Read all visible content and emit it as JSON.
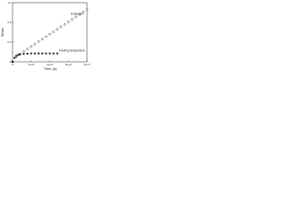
{
  "chart_data": {
    "type": "scatter",
    "xlabel": "Time (s)",
    "ylabel": "Strain",
    "xlim": [
      0,
      400000
    ],
    "xticks": [
      0,
      {
        "value": 100000,
        "label": "1e+5"
      },
      {
        "value": 200000,
        "label": "2e+5"
      },
      {
        "value": 300000,
        "label": "3e+5"
      },
      {
        "value": 400000,
        "label": "4e+5"
      }
    ],
    "ylim": [
      0,
      1.2
    ],
    "yticks": [
      0,
      0.4,
      0.8,
      1.2
    ],
    "series": [
      {
        "name": "Extension",
        "color": "#222222",
        "marker": "open-circle",
        "x": [
          0,
          20000,
          40000,
          60000,
          80000,
          100000,
          120000,
          140000,
          160000,
          180000,
          200000,
          220000,
          240000,
          260000,
          280000,
          300000,
          320000,
          340000,
          360000,
          380000,
          400000
        ],
        "values": [
          0,
          0.1,
          0.16,
          0.21,
          0.26,
          0.31,
          0.36,
          0.41,
          0.46,
          0.51,
          0.56,
          0.61,
          0.66,
          0.71,
          0.76,
          0.81,
          0.86,
          0.91,
          0.96,
          1.01,
          1.06
        ]
      },
      {
        "name": "Flowing temperature",
        "color": "#222222",
        "marker": "filled-square",
        "x": [
          0,
          10000,
          20000,
          30000,
          40000,
          60000,
          80000,
          100000,
          120000,
          140000,
          160000,
          180000,
          200000,
          220000,
          240000
        ],
        "values": [
          0,
          0.08,
          0.12,
          0.14,
          0.15,
          0.16,
          0.165,
          0.17,
          0.17,
          0.17,
          0.17,
          0.17,
          0.17,
          0.17,
          0.17
        ]
      }
    ]
  }
}
